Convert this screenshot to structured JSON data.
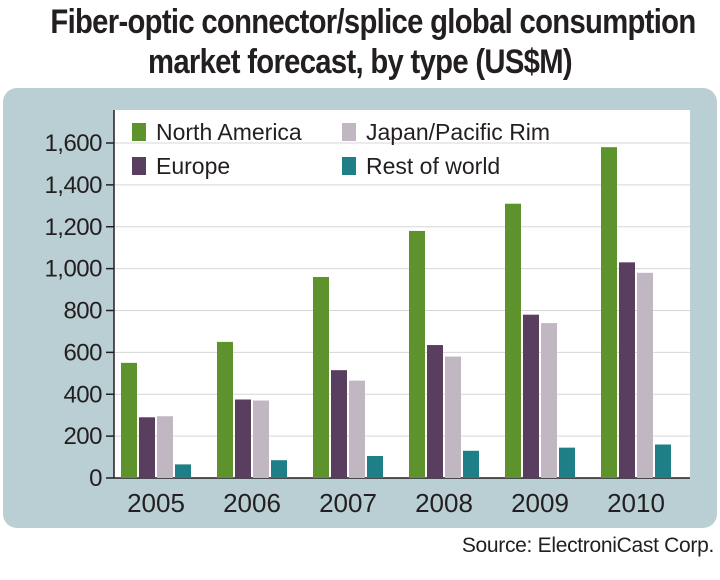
{
  "title_line1": "Fiber-optic connector/splice global consumption",
  "title_line2": "market forecast, by type (US$M)",
  "source": "Source: ElectroniCast Corp.",
  "colors": {
    "panel": "#b9cfd4",
    "plot": "#ffffff",
    "grid": "#d7d7d7",
    "north_america": "#5e922c",
    "japan_pacific_rim": "#c0b7c3",
    "europe": "#5a3e5f",
    "rest_of_world": "#1e7f86"
  },
  "chart_data": {
    "type": "bar",
    "title": "Fiber-optic connector/splice global consumption market forecast, by type (US$M)",
    "xlabel": "",
    "ylabel": "",
    "categories": [
      "2005",
      "2006",
      "2007",
      "2008",
      "2009",
      "2010"
    ],
    "y_ticks": [
      "0",
      "200",
      "400",
      "600",
      "800",
      "1,000",
      "1,200",
      "1,400",
      "1,600"
    ],
    "ylim": [
      0,
      1600
    ],
    "grid": true,
    "legend_placement": "top-left",
    "series": [
      {
        "name": "North America",
        "color": "#5e922c",
        "values": [
          550,
          650,
          960,
          1180,
          1310,
          1580
        ]
      },
      {
        "name": "Europe",
        "color": "#5a3e5f",
        "values": [
          290,
          375,
          515,
          635,
          780,
          1030
        ]
      },
      {
        "name": "Japan/Pacific Rim",
        "color": "#c0b7c3",
        "values": [
          295,
          370,
          465,
          580,
          740,
          980
        ]
      },
      {
        "name": "Rest of world",
        "color": "#1e7f86",
        "values": [
          65,
          85,
          105,
          130,
          145,
          160
        ]
      }
    ],
    "legend_order": [
      "North America",
      "Japan/Pacific Rim",
      "Europe",
      "Rest of world"
    ]
  }
}
